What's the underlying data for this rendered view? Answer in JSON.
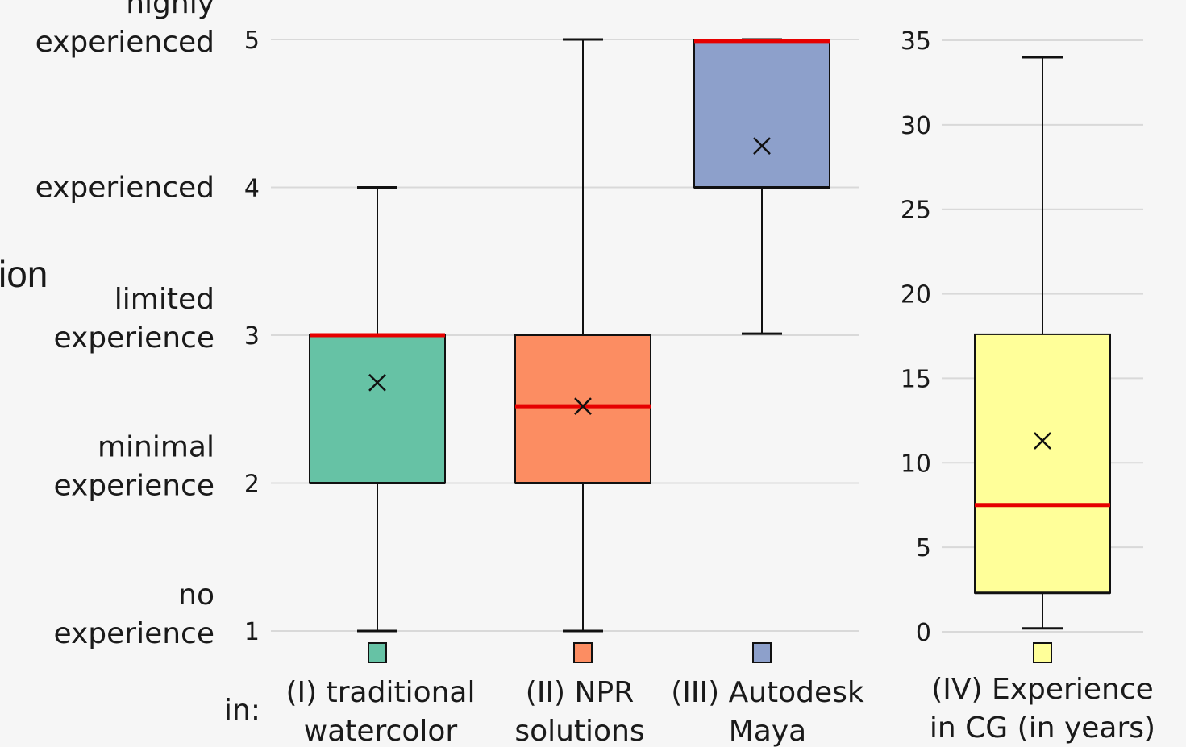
{
  "clipped_text": "ion",
  "category_prefix": "in:",
  "chart_data": [
    {
      "type": "box",
      "ylim": [
        1,
        5
      ],
      "y_ticks": [
        1,
        2,
        3,
        4,
        5
      ],
      "y_tick_labels": [
        [
          "no",
          "experience"
        ],
        [
          "minimal",
          "experience"
        ],
        [
          "limited",
          "experience"
        ],
        [
          "experienced"
        ],
        [
          "highly",
          "experienced"
        ]
      ],
      "grid": true,
      "boxes": [
        {
          "label": [
            "(I) traditional",
            "watercolor"
          ],
          "color": "#66c2a5",
          "min": 1,
          "q1": 2,
          "median": 3,
          "q3": 3,
          "max": 4,
          "mean": 2.68
        },
        {
          "label": [
            "(II) NPR",
            "solutions"
          ],
          "color": "#fc8d62",
          "min": 1,
          "q1": 2,
          "median": 2.52,
          "q3": 3,
          "max": 5,
          "mean": 2.52
        },
        {
          "label": [
            "(III) Autodesk",
            "Maya"
          ],
          "color": "#8da0cb",
          "min": 3.01,
          "q1": 4,
          "median": 4.99,
          "q3": 5,
          "max": 5,
          "mean": 4.28
        }
      ]
    },
    {
      "type": "box",
      "ylim": [
        0,
        35
      ],
      "y_ticks": [
        0,
        5,
        10,
        15,
        20,
        25,
        30,
        35
      ],
      "grid": true,
      "boxes": [
        {
          "label": [
            "(IV) Experience",
            "in CG (in years)"
          ],
          "color": "#ffff99",
          "min": 0.2,
          "q1": 2.3,
          "median": 7.5,
          "q3": 17.6,
          "max": 34,
          "mean": 11.3
        }
      ]
    }
  ]
}
